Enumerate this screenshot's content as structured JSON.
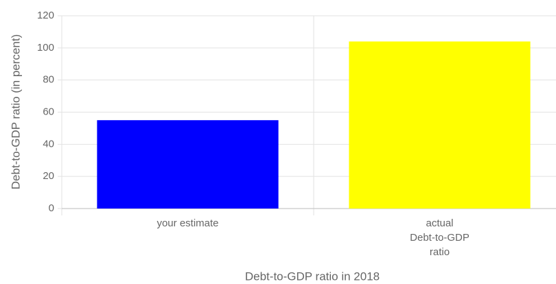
{
  "chart_data": {
    "type": "bar",
    "xlabel": "Debt-to-GDP ratio in 2018",
    "ylabel": "Debt-to-GDP ratio (in percent)",
    "categories": [
      [
        "your estimate"
      ],
      [
        "actual",
        "Debt-to-GDP",
        "ratio"
      ]
    ],
    "values": [
      55,
      104
    ],
    "colors": [
      "#0000ff",
      "#ffff00"
    ],
    "ylim": [
      0,
      120
    ],
    "yticks": [
      0,
      20,
      40,
      60,
      80,
      100,
      120
    ],
    "grid": true
  }
}
